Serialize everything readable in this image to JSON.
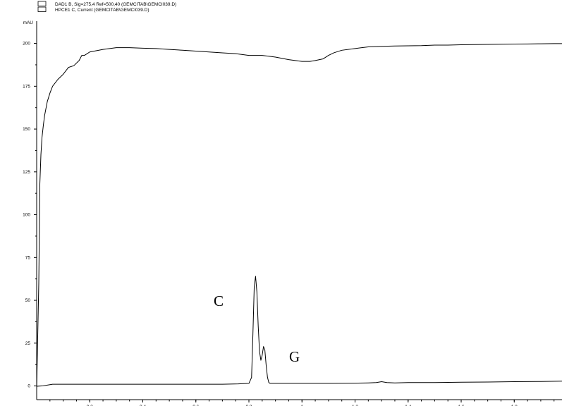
{
  "chart_data": {
    "type": "line",
    "legend": [
      "DAD1 B, Sig=275,4 Ref=500,40 (GEMCITAB\\GEMCI039.D)",
      "HPCE1 C, Current (GEMCITAB\\GEMCI039.D)"
    ],
    "legend_position": "top-left",
    "ylabel": "mAU",
    "ylim": [
      -8,
      213
    ],
    "xlim": [
      0.0,
      1.98
    ],
    "yticks": [
      0,
      25,
      50,
      75,
      100,
      125,
      150,
      175,
      200
    ],
    "xticks": [
      0.2,
      0.4,
      0.6,
      0.8,
      1.0,
      1.2,
      1.4,
      1.6,
      1.8
    ],
    "xtick_labels": [
      "0.2",
      "0.4",
      "0.6",
      "0.8",
      "1",
      "1.2",
      "1.4",
      "1.6",
      "1.8"
    ],
    "grid": false,
    "line_color": "#000000",
    "series": [
      {
        "x": [
          0.0,
          0.008,
          0.012,
          0.016,
          0.02,
          0.025,
          0.03,
          0.04,
          0.05,
          0.06,
          0.08,
          0.1,
          0.12,
          0.14,
          0.16,
          0.17,
          0.18,
          0.19,
          0.2,
          0.25,
          0.3,
          0.35,
          0.4,
          0.45,
          0.5,
          0.55,
          0.6,
          0.65,
          0.7,
          0.75,
          0.8,
          0.85,
          0.9,
          0.95,
          1.0,
          1.03,
          1.05,
          1.08,
          1.1,
          1.12,
          1.15,
          1.2,
          1.25,
          1.3,
          1.35,
          1.4,
          1.45,
          1.5,
          1.55,
          1.6,
          1.65,
          1.7,
          1.75,
          1.8,
          1.85,
          1.9,
          1.95,
          1.98
        ],
        "values": [
          -2,
          60,
          118,
          135,
          145,
          152,
          158,
          166,
          171,
          175,
          179,
          182,
          186,
          187,
          190,
          193,
          193,
          194,
          195,
          196.5,
          197.5,
          197.5,
          197.2,
          197,
          196.5,
          196,
          195.5,
          195,
          194.5,
          194,
          193,
          193,
          192,
          190.5,
          189.5,
          189.5,
          190,
          191,
          193,
          194.5,
          196,
          197,
          198,
          198.3,
          198.5,
          198.6,
          198.7,
          199,
          199,
          199.2,
          199.3,
          199.4,
          199.5,
          199.6,
          199.7,
          199.8,
          199.9,
          199.9
        ]
      },
      {
        "x": [
          0.0,
          0.02,
          0.04,
          0.06,
          0.08,
          0.1,
          0.2,
          0.3,
          0.4,
          0.5,
          0.6,
          0.7,
          0.76,
          0.8,
          0.81,
          0.815,
          0.82,
          0.825,
          0.83,
          0.835,
          0.84,
          0.845,
          0.85,
          0.855,
          0.86,
          0.865,
          0.87,
          0.875,
          0.88,
          0.89,
          0.9,
          0.95,
          1.0,
          1.05,
          1.1,
          1.2,
          1.25,
          1.28,
          1.3,
          1.32,
          1.35,
          1.4,
          1.5,
          1.6,
          1.7,
          1.8,
          1.9,
          1.98
        ],
        "values": [
          -0.2,
          0,
          0.5,
          1,
          1,
          1,
          1,
          1,
          1,
          1,
          1,
          1,
          1.2,
          1.5,
          5,
          30,
          58,
          64,
          55,
          35,
          20,
          15,
          18,
          23,
          21,
          12,
          5,
          2,
          1.5,
          1.5,
          1.5,
          1.5,
          1.5,
          1.5,
          1.5,
          1.6,
          1.8,
          2,
          2.5,
          2,
          1.8,
          2,
          2,
          2.2,
          2.3,
          2.5,
          2.6,
          2.8
        ]
      }
    ],
    "annotations": [
      {
        "text": "C",
        "x": 0.67,
        "y": 47
      },
      {
        "text": "G",
        "x": 0.97,
        "y": 14
      }
    ]
  }
}
